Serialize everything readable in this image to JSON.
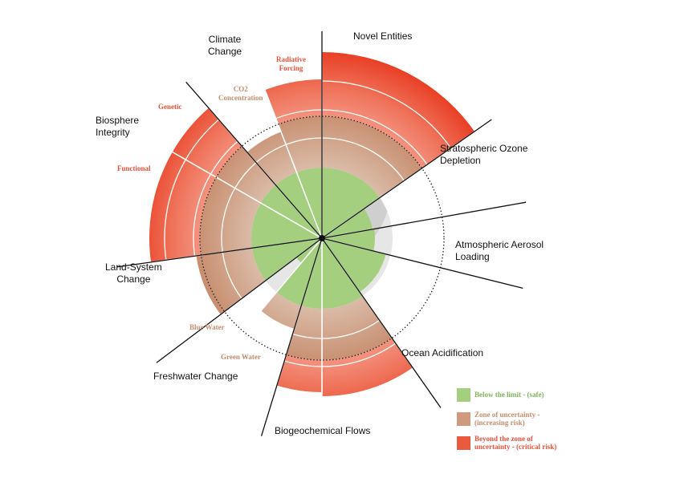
{
  "boundaries": {
    "novel_entities": "Novel Entities",
    "stratospheric_ozone": "Stratospheric Ozone\nDepletion",
    "aerosol": "Atmospheric Aerosol\nLoading",
    "ocean": "Ocean Acidification",
    "biogeochemical": "Biogeochemical Flows",
    "freshwater": "Freshwater Change",
    "land_system": "Land-System\nChange",
    "biosphere": "Biosphere\nIntegrity",
    "climate": "Climate\nChange"
  },
  "sub_indicators": {
    "radiative_forcing": "Radiative\nForcing",
    "co2_concentration": "CO2\nConcentration",
    "genetic": "Genetic",
    "functional": "Functional",
    "blue_water": "Blue Water",
    "green_water": "Green Water"
  },
  "legend": [
    {
      "label": "Below the limit - (safe)",
      "color": "#a3cf7e"
    },
    {
      "label": "Zone of uncertainty -\n(increasing risk)",
      "color": "#cf9a7d"
    },
    {
      "label": "Beyond the zone of\nuncertainty - (critical risk)",
      "color": "#ea5a3e"
    }
  ],
  "colors": {
    "safe": "#a3cf7e",
    "uncertainty": "#cf9a7d",
    "critical": "#ea5a3e",
    "globe": "#e6e6e6"
  }
}
